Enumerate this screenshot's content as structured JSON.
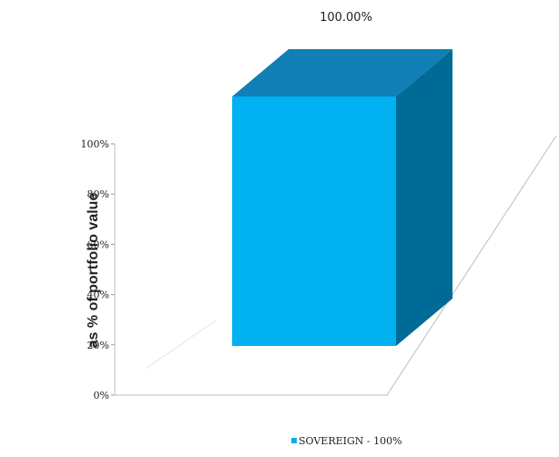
{
  "chart_data": {
    "type": "bar",
    "style": "3d",
    "categories": [
      "SOVEREIGN"
    ],
    "values": [
      100
    ],
    "data_labels": [
      "100.00%"
    ],
    "ylabel": "as % of portfolio value",
    "xlabel": "",
    "ylim": [
      0,
      100
    ],
    "yticks": [
      0,
      20,
      40,
      60,
      80,
      100
    ],
    "ytick_labels": [
      "0%",
      "20%",
      "40%",
      "60%",
      "80%",
      "100%"
    ],
    "legend": {
      "position": "bottom-right",
      "entries": [
        {
          "label": "SOVEREIGN - 100%",
          "color": "#00aeef"
        }
      ]
    },
    "colors": {
      "front": "#00b0f0",
      "top": "#0f7fb5",
      "side": "#006b96"
    }
  }
}
